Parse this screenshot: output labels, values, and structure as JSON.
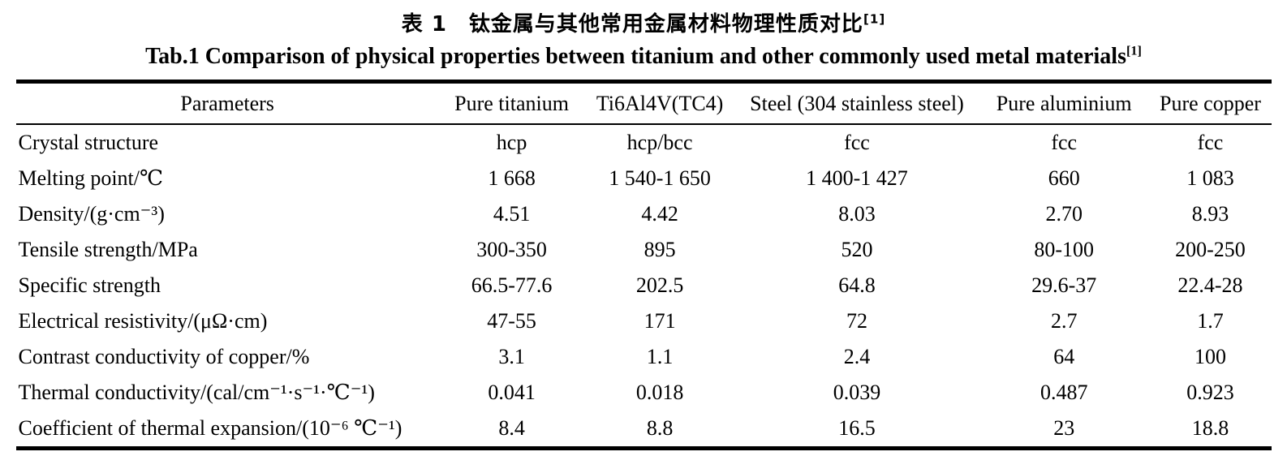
{
  "titles": {
    "zh": {
      "text": "表 1　钛金属与其他常用金属材料物理性质对比",
      "sup": "[1]"
    },
    "en": {
      "text": "Tab.1 Comparison of physical properties between titanium and other commonly used metal materials",
      "sup": "[1]"
    }
  },
  "table": {
    "columns": [
      "Parameters",
      "Pure titanium",
      "Ti6Al4V(TC4)",
      "Steel (304 stainless steel)",
      "Pure aluminium",
      "Pure copper"
    ],
    "rows": [
      {
        "label": "Crystal structure",
        "values": [
          "hcp",
          "hcp/bcc",
          "fcc",
          "fcc",
          "fcc"
        ]
      },
      {
        "label": "Melting point/℃",
        "values": [
          "1 668",
          "1 540-1 650",
          "1 400-1 427",
          "660",
          "1 083"
        ]
      },
      {
        "label": "Density/(g·cm⁻³)",
        "values": [
          "4.51",
          "4.42",
          "8.03",
          "2.70",
          "8.93"
        ]
      },
      {
        "label": "Tensile strength/MPa",
        "values": [
          "300-350",
          "895",
          "520",
          "80-100",
          "200-250"
        ]
      },
      {
        "label": "Specific strength",
        "values": [
          "66.5-77.6",
          "202.5",
          "64.8",
          "29.6-37",
          "22.4-28"
        ]
      },
      {
        "label": "Electrical resistivity/(μΩ·cm)",
        "values": [
          "47-55",
          "171",
          "72",
          "2.7",
          "1.7"
        ]
      },
      {
        "label": "Contrast conductivity of copper/%",
        "values": [
          "3.1",
          "1.1",
          "2.4",
          "64",
          "100"
        ]
      },
      {
        "label": "Thermal conductivity/(cal/cm⁻¹·s⁻¹·℃⁻¹)",
        "values": [
          "0.041",
          "0.018",
          "0.039",
          "0.487",
          "0.923"
        ]
      },
      {
        "label": "Coefficient of thermal expansion/(10⁻⁶ ℃⁻¹)",
        "values": [
          "8.4",
          "8.8",
          "16.5",
          "23",
          "18.8"
        ]
      }
    ]
  },
  "colors": {
    "text": "#000000",
    "background": "#ffffff",
    "rule": "#000000"
  }
}
